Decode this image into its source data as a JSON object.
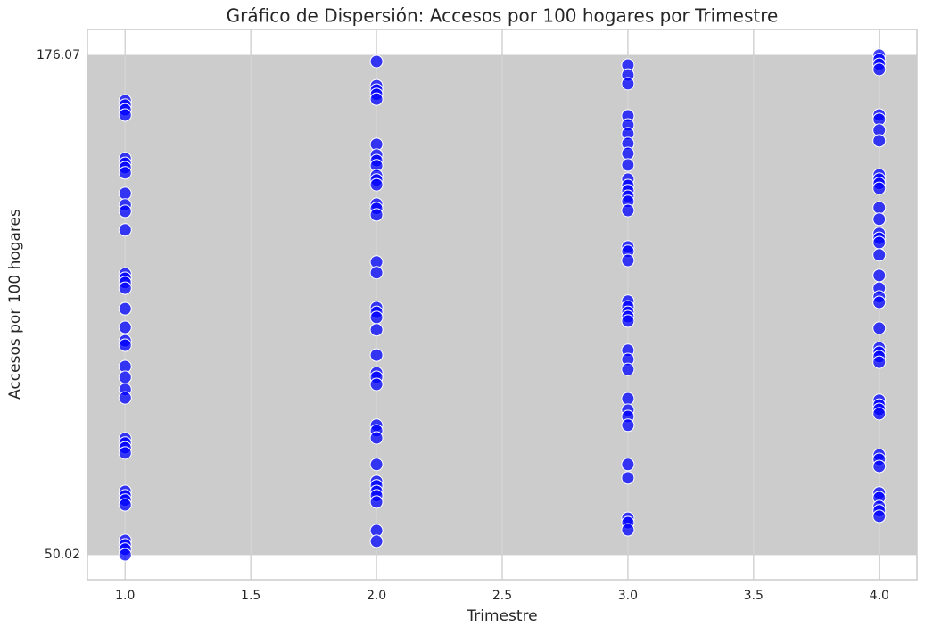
{
  "chart_data": {
    "type": "scatter",
    "title": "Gráfico de Dispersión: Accesos por 100 hogares por Trimestre",
    "x_label": "Trimestre",
    "y_label": "Accesos por 100 hogares",
    "color": "#0000ff",
    "grid": true,
    "xlim": [
      0.85,
      4.15
    ],
    "xticks": [
      {
        "value": 1,
        "label": "1.0"
      },
      {
        "value": 1.5,
        "label": "1.5"
      },
      {
        "value": 2,
        "label": "2.0"
      },
      {
        "value": 2.5,
        "label": "2.5"
      },
      {
        "value": 3,
        "label": "3.0"
      },
      {
        "value": 3.5,
        "label": "3.5"
      },
      {
        "value": 4,
        "label": "4.0"
      }
    ],
    "ylim": [
      43.7,
      182.6
    ],
    "yticks": [
      176.07,
      50.02
    ],
    "x": [
      1,
      1,
      1,
      1,
      1,
      1,
      1,
      1,
      1,
      1,
      1,
      1,
      1,
      1,
      1,
      1,
      1,
      1,
      1,
      1,
      1,
      1,
      1,
      1,
      1,
      1,
      1,
      1,
      1,
      1,
      1,
      1,
      1,
      1,
      1,
      1,
      2,
      2,
      2,
      2,
      2,
      2,
      2,
      2,
      2,
      2,
      2,
      2,
      2,
      2,
      2,
      2,
      2,
      2,
      2,
      2,
      2,
      2,
      2,
      2,
      2,
      2,
      2,
      2,
      2,
      2,
      2,
      2,
      2,
      2,
      2,
      2,
      3,
      3,
      3,
      3,
      3,
      3,
      3,
      3,
      3,
      3,
      3,
      3,
      3,
      3,
      3,
      3,
      3,
      3,
      3,
      3,
      3,
      3,
      3,
      3,
      3,
      3,
      3,
      3,
      3,
      3,
      3,
      3,
      3,
      3,
      3,
      4,
      4,
      4,
      4,
      4,
      4,
      4,
      4,
      4,
      4,
      4,
      4,
      4,
      4,
      4,
      4,
      4,
      4,
      4,
      4,
      4,
      4,
      4,
      4,
      4,
      4,
      4,
      4,
      4,
      4,
      4,
      4,
      4,
      4,
      4,
      4,
      4,
      4,
      4
    ],
    "values": [
      164.6,
      163.5,
      162.3,
      161.0,
      150.0,
      148.8,
      147.7,
      146.4,
      141.2,
      138.3,
      136.7,
      132.0,
      120.9,
      119.8,
      118.7,
      117.3,
      112.1,
      107.4,
      104.0,
      102.9,
      97.5,
      94.8,
      91.7,
      89.6,
      79.3,
      78.2,
      77.0,
      75.7,
      66.0,
      64.9,
      63.8,
      62.6,
      53.6,
      52.5,
      51.4,
      50.0,
      174.5,
      168.4,
      167.3,
      166.2,
      165.0,
      153.6,
      150.9,
      149.5,
      148.2,
      145.7,
      144.6,
      143.4,
      138.5,
      137.4,
      135.8,
      123.9,
      121.2,
      112.4,
      111.2,
      109.9,
      106.8,
      100.4,
      95.9,
      94.8,
      93.0,
      82.7,
      81.3,
      79.5,
      72.8,
      68.5,
      67.4,
      66.0,
      64.9,
      63.3,
      56.1,
      53.4,
      173.6,
      171.1,
      168.9,
      160.8,
      158.5,
      156.3,
      153.8,
      151.3,
      148.4,
      144.8,
      143.2,
      141.9,
      140.5,
      139.2,
      136.9,
      127.7,
      126.6,
      124.3,
      114.0,
      112.6,
      111.2,
      110.1,
      109.0,
      101.6,
      99.3,
      96.8,
      89.4,
      86.5,
      84.9,
      82.7,
      72.8,
      69.4,
      59.2,
      58.1,
      56.3,
      176.1,
      175.0,
      173.8,
      172.5,
      161.0,
      159.9,
      157.2,
      154.5,
      145.9,
      144.8,
      143.7,
      142.5,
      137.6,
      134.7,
      131.1,
      129.9,
      128.8,
      125.7,
      120.5,
      117.3,
      115.1,
      113.7,
      107.2,
      102.2,
      101.1,
      100.0,
      98.6,
      89.0,
      87.8,
      86.7,
      85.6,
      75.2,
      74.1,
      72.3,
      65.6,
      64.4,
      62.2,
      61.1,
      59.7
    ]
  }
}
